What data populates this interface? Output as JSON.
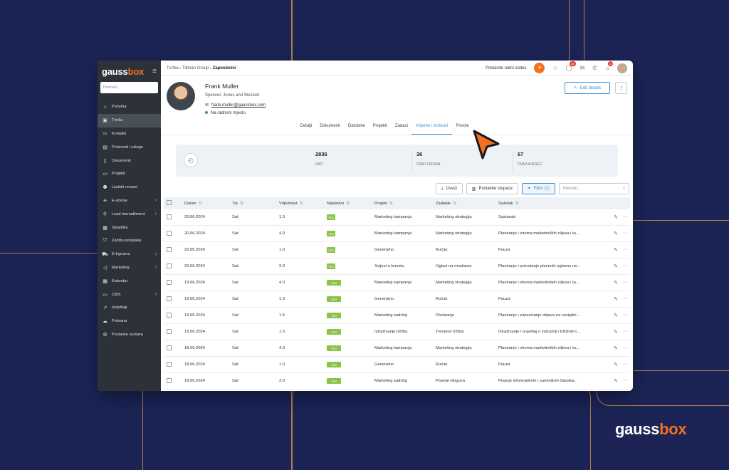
{
  "brand": {
    "text": "gauss",
    "accent": "box",
    "accent_color": "#f37021"
  },
  "sidebar": {
    "logo_text": "gauss",
    "logo_accent": "box",
    "search_placeholder": "Pretraži...",
    "items": [
      {
        "label": "Početna",
        "icon": "home-icon",
        "chevron": false
      },
      {
        "label": "Tvrtka",
        "icon": "briefcase-icon",
        "chevron": false,
        "active": true
      },
      {
        "label": "Kontakti",
        "icon": "contacts-icon",
        "chevron": false
      },
      {
        "label": "Proizvodi i usluge",
        "icon": "box-icon",
        "chevron": false
      },
      {
        "label": "Dokumenti",
        "icon": "document-icon",
        "chevron": false
      },
      {
        "label": "Projekti",
        "icon": "folder-icon",
        "chevron": false
      },
      {
        "label": "Ljudski resursi",
        "icon": "people-icon",
        "chevron": false
      },
      {
        "label": "E-učenje",
        "icon": "bulb-icon",
        "chevron": true
      },
      {
        "label": "Lead menadžment",
        "icon": "lead-icon",
        "chevron": true
      },
      {
        "label": "Skladište",
        "icon": "warehouse-icon",
        "chevron": false
      },
      {
        "label": "Zaštita podataka",
        "icon": "shield-icon",
        "chevron": false
      },
      {
        "label": "E-trgovina",
        "icon": "cart-icon",
        "chevron": true
      },
      {
        "label": "Marketing",
        "icon": "megaphone-icon",
        "chevron": true
      },
      {
        "label": "Kalendar",
        "icon": "calendar-icon",
        "chevron": false
      },
      {
        "label": "CMS",
        "icon": "monitor-icon",
        "chevron": true
      },
      {
        "label": "Izvještaji",
        "icon": "chart-icon",
        "chevron": false
      },
      {
        "label": "Pohrana",
        "icon": "cloud-icon",
        "chevron": false
      },
      {
        "label": "Postavke sustava",
        "icon": "gear-icon",
        "chevron": false
      }
    ]
  },
  "topbar": {
    "breadcrumb": [
      "Tvrtka",
      "Tillman Group",
      "Zaposlenici"
    ],
    "status_label": "Postavite radni status",
    "notif_badge_1": "13",
    "notif_badge_2": "3"
  },
  "profile": {
    "name": "Frank Muller",
    "company": "Spencer, Jones and Wuckert",
    "email": "frank.muller@gaussbox.com",
    "status": "Na radnom mjestu",
    "edit_label": "Edit details",
    "more_label": "⋮"
  },
  "tabs": [
    {
      "label": "Detalji",
      "active": false
    },
    {
      "label": "Dokumenti",
      "active": false
    },
    {
      "label": "Datoteke",
      "active": false
    },
    {
      "label": "Projekti",
      "active": false
    },
    {
      "label": "Zadaci",
      "active": false
    },
    {
      "label": "Vrijeme i troškovi",
      "active": true
    },
    {
      "label": "Privole",
      "active": false
    }
  ],
  "stats": [
    {
      "value": "2836",
      "label": "SATI"
    },
    {
      "value": "36",
      "label": "OVAJ TJEDAN"
    },
    {
      "value": "67",
      "label": "OVAJ MJESEC"
    }
  ],
  "toolbar": {
    "export_label": "Izvezi",
    "columns_label": "Postavke stupaca",
    "filter_label": "Filter (2)",
    "search_placeholder": "Pretraži..."
  },
  "table": {
    "headers": [
      "Datum",
      "Tip",
      "Vrijednost",
      "Naplativo",
      "Projekt",
      "Zadatak",
      "Sažetak"
    ],
    "rows": [
      [
        "20.06.2024",
        "Sat",
        "1.0",
        "YES",
        "Marketing kampanja",
        "Marketing strategija",
        "Sastanak"
      ],
      [
        "20.06.2024",
        "Sat",
        "4.0",
        "YES",
        "Marketing kampanja",
        "Marketing strategija",
        "Planiranje i shema marketinških ciljeva i ta..."
      ],
      [
        "20.06.2024",
        "Sat",
        "1.0",
        "YES",
        "Generalno",
        "Ručak",
        "Pauza"
      ],
      [
        "20.06.2024",
        "Sat",
        "2.0",
        "YES",
        "Svijest o brendu",
        "Oglasi na mrežama",
        "Planiranje i pokretanje plaćenih oglasnu ne..."
      ],
      [
        "19.06.2024",
        "Sat",
        "4.0",
        "YES",
        "Marketing kampanja",
        "Marketing strategija",
        "Planiranje i shema marketinških ciljeva i ta..."
      ],
      [
        "19.06.2024",
        "Sat",
        "1.0",
        "YES",
        "Generalno",
        "Ručak",
        "Pauza"
      ],
      [
        "19.06.2024",
        "Sat",
        "1.5",
        "YES",
        "Marketing sadržaj",
        "Planiranje",
        "Planiranje i zakazivanje objava na socijalni..."
      ],
      [
        "19.06.2024",
        "Sat",
        "1.5",
        "YES",
        "Istraživanje tržišta",
        "Trendovi tržišta",
        "Istraživanje i izvještaj o industriji i tržišnim t..."
      ],
      [
        "18.06.2024",
        "Sat",
        "4.0",
        "YES",
        "Marketing kampanja",
        "Marketing strategija",
        "Planiranje i shema marketinških ciljeva i ta..."
      ],
      [
        "18.06.2024",
        "Sat",
        "1.0",
        "YES",
        "Generalno",
        "Ručak",
        "Pauza"
      ],
      [
        "18.06.2024",
        "Sat",
        "3.0",
        "YES",
        "Marketing sadržaj",
        "Pisanje blogova",
        "Pisanje informativnih i zanimljivih članaka..."
      ]
    ]
  }
}
